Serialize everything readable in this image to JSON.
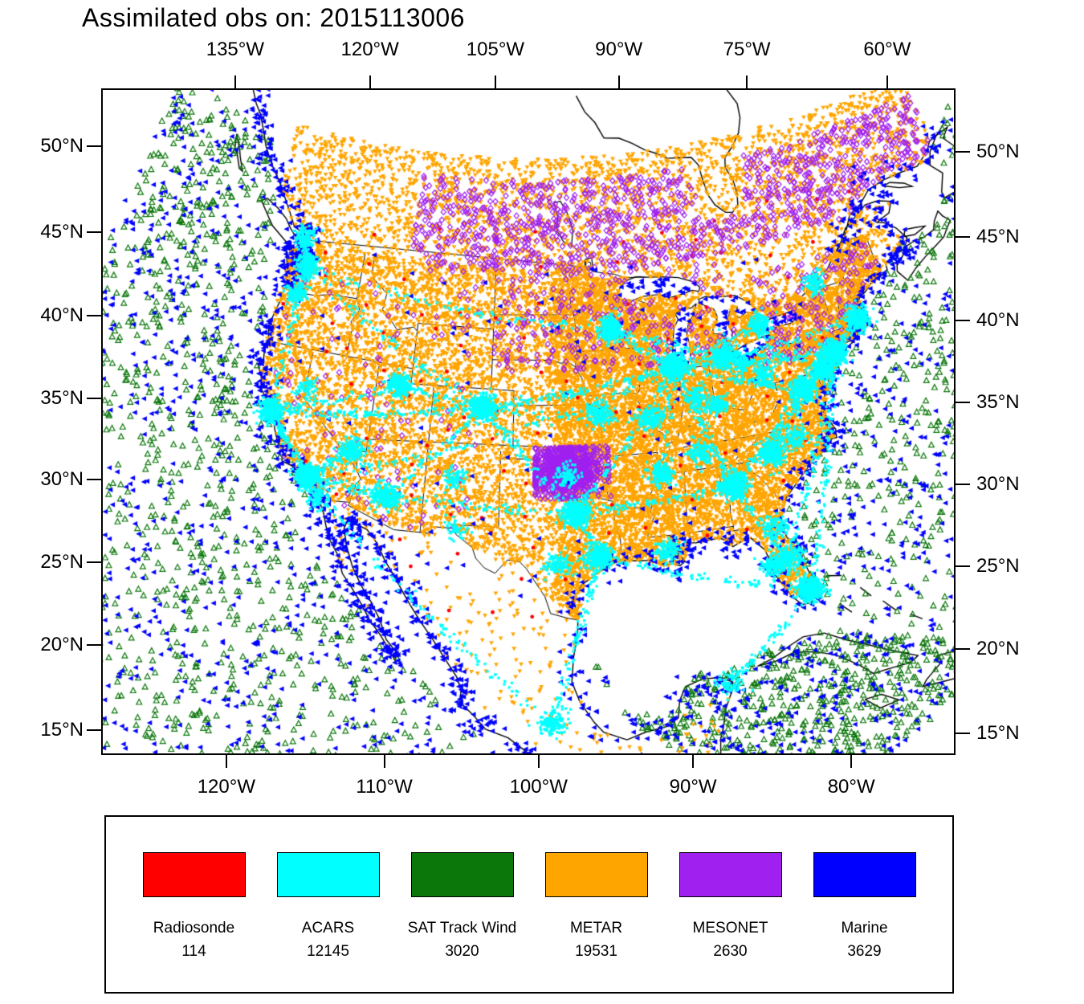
{
  "title": "Assimilated obs on: 2015113006",
  "axes": {
    "top": [
      "135°W",
      "120°W",
      "105°W",
      "90°W",
      "75°W",
      "60°W"
    ],
    "bottom": [
      "120°W",
      "110°W",
      "100°W",
      "90°W",
      "80°W"
    ],
    "left": [
      "50°N",
      "45°N",
      "40°N",
      "35°N",
      "30°N",
      "25°N",
      "20°N",
      "15°N"
    ],
    "right": [
      "50°N",
      "45°N",
      "40°N",
      "35°N",
      "30°N",
      "25°N",
      "20°N",
      "15°N"
    ]
  },
  "legend": {
    "position": "bottom",
    "items": [
      {
        "label": "Radiosonde",
        "count": "114",
        "color": "#ff0000"
      },
      {
        "label": "ACARS",
        "count": "12145",
        "color": "#00ffff"
      },
      {
        "label": "SAT Track Wind",
        "count": "3020",
        "color": "#0b770b"
      },
      {
        "label": "METAR",
        "count": "19531",
        "color": "#ffa500"
      },
      {
        "label": "MESONET",
        "count": "2630",
        "color": "#a020f0"
      },
      {
        "label": "Marine",
        "count": "3629",
        "color": "#0000ff"
      }
    ]
  },
  "chart_data": {
    "type": "scatter",
    "subtype": "geographic-observation-map",
    "title": "Assimilated obs on: 2015113006",
    "timestamp_label": "2015113006",
    "region": "North America / CONUS",
    "grid": false,
    "legend_position": "bottom",
    "axis_ticks": {
      "top_lon": [
        -135,
        -120,
        -105,
        -90,
        -75,
        -60
      ],
      "bottom_lon": [
        -120,
        -110,
        -100,
        -90,
        -80
      ],
      "lat": [
        50,
        45,
        40,
        35,
        30,
        25,
        20,
        15
      ]
    },
    "series": [
      {
        "name": "Radiosonde",
        "count": 114,
        "color": "#ff0000",
        "marker": "circle-filled",
        "distribution": "sparse network over US land, mostly hidden under denser obs"
      },
      {
        "name": "ACARS",
        "count": 12145,
        "color": "#00ffff",
        "marker": "square-filled",
        "distribution": "aircraft reports: dense clusters at airport hubs with trails along flight routes over US, into Mexico and across the Gulf"
      },
      {
        "name": "SAT Track Wind",
        "count": 3020,
        "color": "#0b770b",
        "marker": "triangle-up-open",
        "distribution": "uniformly scattered over Pacific, Atlantic, Gulf of Mexico and Caribbean ocean areas"
      },
      {
        "name": "METAR",
        "count": 19531,
        "color": "#ffa500",
        "marker": "triangle-down-filled",
        "distribution": "very dense over eastern US land, moderate over western US and southern Canada, sparse over Mexico"
      },
      {
        "name": "MESONET",
        "count": 2630,
        "color": "#a020f0",
        "marker": "diamond-open",
        "distribution": "dense cluster over Oklahoma, band across southern Canada, scattered over northern US"
      },
      {
        "name": "Marine",
        "count": 3629,
        "color": "#0000ff",
        "marker": "triangle-left-filled",
        "distribution": "ships/buoys along coasts, scattered over open ocean and Great Lakes"
      }
    ]
  }
}
